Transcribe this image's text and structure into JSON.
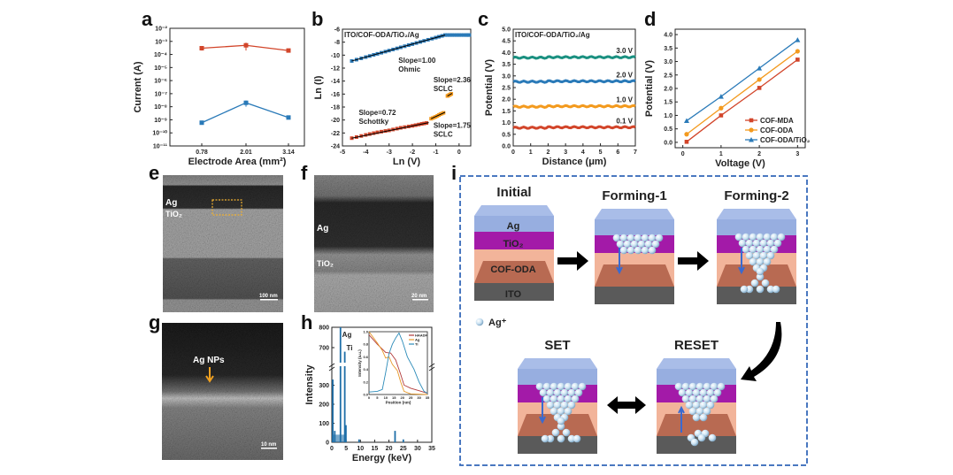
{
  "colors": {
    "red": "#d2452a",
    "blue": "#2a7ab8",
    "orange": "#f39a1e",
    "teal": "#1a9080",
    "frame": "#4a78c0",
    "ag_layer": "#97aee0",
    "tio2": "#a31aa8",
    "cof": "#f2b49a",
    "cof_inner": "#b86a52",
    "ito": "#5a5a5a",
    "sphere": "#c9e1f2"
  },
  "panels": {
    "a": "a",
    "b": "b",
    "c": "c",
    "d": "d",
    "e": "e",
    "f": "f",
    "g": "g",
    "h": "h",
    "i": "i"
  },
  "chart_data": [
    {
      "id": "a",
      "type": "line",
      "xlabel": "Electrode Area (mm²)",
      "ylabel": "Current (A)",
      "yscale": "log",
      "ylim": [
        1e-11,
        0.01
      ],
      "yticks": [
        "10⁻²",
        "10⁻³",
        "10⁻⁴",
        "10⁻⁵",
        "10⁻⁶",
        "10⁻⁷",
        "10⁻⁸",
        "10⁻⁹",
        "10⁻¹⁰",
        "10⁻¹¹"
      ],
      "categories": [
        "0.78",
        "2.01",
        "3.14"
      ],
      "series": [
        {
          "color": "#d2452a",
          "values": [
            0.0003,
            0.0005,
            0.0002
          ],
          "err": [
            0.0001,
            0.0003,
            5e-05
          ]
        },
        {
          "color": "#2a7ab8",
          "values": [
            6e-10,
            2e-08,
            1.5e-09
          ],
          "err": [
            1e-10,
            1e-08,
            3e-10
          ]
        }
      ]
    },
    {
      "id": "b",
      "type": "scatter",
      "title": "ITO/COF-ODA/TiO₂/Ag",
      "xlabel": "Ln (V)",
      "ylabel": "Ln (I)",
      "xlim": [
        -5,
        0.5
      ],
      "ylim": [
        -24,
        -6
      ],
      "xticks": [
        -5,
        -4,
        -3,
        -2,
        -1,
        0
      ],
      "yticks": [
        -6,
        -8,
        -10,
        -12,
        -14,
        -16,
        -18,
        -20,
        -22,
        -24
      ],
      "series": [
        {
          "color": "#2a7ab8",
          "points": [
            [
              -4.6,
              -10.9
            ],
            [
              -4,
              -10.3
            ],
            [
              -3.5,
              -9.8
            ],
            [
              -3,
              -9.3
            ],
            [
              -2.5,
              -8.8
            ],
            [
              -2,
              -8.3
            ],
            [
              -1.5,
              -7.8
            ],
            [
              -1,
              -7.3
            ],
            [
              -0.6,
              -6.9
            ],
            [
              -0.3,
              -6.9
            ],
            [
              0,
              -6.9
            ],
            [
              0.3,
              -6.9
            ],
            [
              0.5,
              -6.9
            ]
          ]
        },
        {
          "color": "#d2452a",
          "points": [
            [
              -4.6,
              -22.8
            ],
            [
              -4,
              -22.3
            ],
            [
              -3.5,
              -21.9
            ],
            [
              -3,
              -21.6
            ],
            [
              -2.5,
              -21.2
            ],
            [
              -2,
              -20.9
            ],
            [
              -1.6,
              -20.6
            ],
            [
              -1.3,
              -20.4
            ]
          ]
        },
        {
          "color": "#f39a1e",
          "points": [
            [
              -1.2,
              -19.8
            ],
            [
              -1,
              -19.5
            ],
            [
              -0.8,
              -19.1
            ],
            [
              -0.6,
              -18.8
            ]
          ]
        },
        {
          "color": "#f39a1e",
          "points": [
            [
              -0.5,
              -16.3
            ],
            [
              -0.4,
              -16.1
            ],
            [
              -0.3,
              -15.9
            ]
          ]
        }
      ],
      "annotations": [
        {
          "text": "Slope=1.00",
          "sub": "Ohmic",
          "x": -2.6,
          "y": -11.2
        },
        {
          "text": "Slope=2.36",
          "sub": "SCLC",
          "x": -1.1,
          "y": -14.2
        },
        {
          "text": "Slope=0.72",
          "sub": "Schottky",
          "x": -4.3,
          "y": -19.2
        },
        {
          "text": "Slope=1.75",
          "sub": "SCLC",
          "x": -1.1,
          "y": -21.2
        }
      ]
    },
    {
      "id": "c",
      "type": "line",
      "title": "ITO/COF-ODA/TiO₂/Ag",
      "xlabel": "Distance (μm)",
      "ylabel": "Potential (V)",
      "xlim": [
        0,
        7
      ],
      "ylim": [
        0,
        5
      ],
      "xticks": [
        0,
        1,
        2,
        3,
        4,
        5,
        6,
        7
      ],
      "yticks": [
        "0.0",
        "0.5",
        "1.0",
        "1.5",
        "2.0",
        "2.5",
        "3.0",
        "3.5",
        "4.0",
        "4.5",
        "5.0"
      ],
      "series": [
        {
          "name": "0.1 V",
          "color": "#d2452a",
          "value": 0.78
        },
        {
          "name": "1.0 V",
          "color": "#f39a1e",
          "value": 1.68
        },
        {
          "name": "2.0 V",
          "color": "#2a7ab8",
          "value": 2.75
        },
        {
          "name": "3.0 V",
          "color": "#1a9080",
          "value": 3.78
        }
      ]
    },
    {
      "id": "d",
      "type": "line",
      "xlabel": "Voltage (V)",
      "ylabel": "Potential (V)",
      "xlim": [
        -0.2,
        3.2
      ],
      "ylim": [
        -0.2,
        4.2
      ],
      "legend": "bottom-right",
      "xticks": [
        0,
        1,
        2,
        3
      ],
      "yticks": [
        "0.0",
        "0.5",
        "1.0",
        "1.5",
        "2.0",
        "2.5",
        "3.0",
        "3.5",
        "4.0"
      ],
      "x": [
        0.1,
        1,
        2,
        3
      ],
      "series": [
        {
          "name": "COF-MDA",
          "color": "#d2452a",
          "marker": "square",
          "values": [
            0.02,
            1.0,
            2.02,
            3.07
          ]
        },
        {
          "name": "COF-ODA",
          "color": "#f39a1e",
          "marker": "circle",
          "values": [
            0.3,
            1.27,
            2.33,
            3.38
          ]
        },
        {
          "name": "COF-ODA/TiO₂",
          "color": "#2a7ab8",
          "marker": "triangle",
          "values": [
            0.8,
            1.7,
            2.75,
            3.8
          ]
        }
      ]
    },
    {
      "id": "h",
      "type": "bar",
      "xlabel": "Energy (keV)",
      "ylabel": "Intensity",
      "xlim": [
        0,
        35
      ],
      "ylim": [
        0,
        800
      ],
      "ybreak": [
        350,
        650
      ],
      "xticks": [
        0,
        5,
        10,
        15,
        20,
        25,
        30,
        35
      ],
      "yticks": [
        0,
        100,
        200,
        300,
        700,
        800
      ],
      "peaks": [
        [
          0.3,
          330
        ],
        [
          1.0,
          60
        ],
        [
          3.0,
          800
        ],
        [
          4.5,
          680
        ],
        [
          4.9,
          90
        ],
        [
          9.5,
          15
        ],
        [
          22.1,
          60
        ],
        [
          25,
          15
        ]
      ],
      "peak_labels": [
        "Ag",
        "Ti"
      ],
      "inset": {
        "type": "line",
        "xlabel": "Position (nm)",
        "ylabel": "Intensity (a.u.)",
        "xlim": [
          0,
          35
        ],
        "ylim": [
          0,
          1.0
        ],
        "xticks": [
          0,
          5,
          10,
          15,
          20,
          25,
          30,
          35
        ],
        "yticks": [
          "0.0",
          "0.2",
          "0.4",
          "0.6",
          "0.8",
          "1.0"
        ],
        "series": [
          {
            "name": "HAADF",
            "color": "#b23a3a",
            "points": [
              [
                0,
                0.95
              ],
              [
                5,
                0.8
              ],
              [
                10,
                0.67
              ],
              [
                13,
                0.66
              ],
              [
                16,
                0.55
              ],
              [
                19,
                0.32
              ],
              [
                21,
                0.15
              ],
              [
                25,
                0.1
              ],
              [
                30,
                0.06
              ],
              [
                35,
                0.02
              ]
            ]
          },
          {
            "name": "Ag",
            "color": "#e89a2a",
            "points": [
              [
                0,
                1.0
              ],
              [
                5,
                0.82
              ],
              [
                8,
                0.7
              ],
              [
                10,
                0.58
              ],
              [
                12,
                0.6
              ],
              [
                14,
                0.48
              ],
              [
                17,
                0.38
              ],
              [
                19,
                0.2
              ],
              [
                21,
                0.05
              ],
              [
                25,
                0.01
              ],
              [
                35,
                0.0
              ]
            ]
          },
          {
            "name": "Ti",
            "color": "#2a8ab8",
            "points": [
              [
                0,
                0.04
              ],
              [
                5,
                0.05
              ],
              [
                8,
                0.08
              ],
              [
                10,
                0.35
              ],
              [
                12,
                0.65
              ],
              [
                14,
                0.8
              ],
              [
                16,
                0.9
              ],
              [
                18,
                0.98
              ],
              [
                20,
                0.85
              ],
              [
                23,
                0.6
              ],
              [
                27,
                0.4
              ],
              [
                30,
                0.2
              ],
              [
                33,
                0.05
              ],
              [
                35,
                0.02
              ]
            ]
          }
        ]
      }
    }
  ],
  "micrographs": {
    "e": {
      "labels": [
        "Ag",
        "TiO₂"
      ],
      "scale": "100 nm"
    },
    "f": {
      "labels": [
        "Ag",
        "TiO₂"
      ],
      "scale": "20 nm"
    },
    "g": {
      "labels": [
        "Ag NPs"
      ],
      "scale": "10 nm"
    }
  },
  "diagram": {
    "stages": [
      "Initial",
      "Forming-1",
      "Forming-2",
      "SET",
      "RESET"
    ],
    "layers": [
      "Ag",
      "TiO₂",
      "COF-ODA",
      "ITO"
    ],
    "legend": "Ag⁺"
  }
}
